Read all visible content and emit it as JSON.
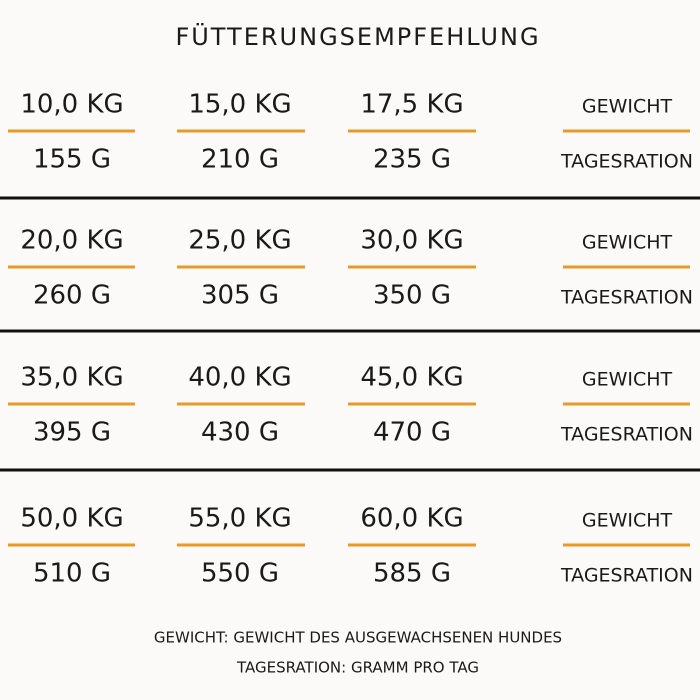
{
  "title": "FÜTTERUNGSEMPFEHLUNG",
  "groups": [
    {
      "items": [
        {
          "weight": "10,0 KG",
          "ration": "155 G"
        },
        {
          "weight": "15,0 KG",
          "ration": "210 G"
        },
        {
          "weight": "17,5 KG",
          "ration": "235 G"
        }
      ],
      "weight_label": "GEWICHT",
      "ration_label": "TAGESRATION"
    },
    {
      "items": [
        {
          "weight": "20,0 KG",
          "ration": "260 G"
        },
        {
          "weight": "25,0 KG",
          "ration": "305 G"
        },
        {
          "weight": "30,0 KG",
          "ration": "350 G"
        }
      ],
      "weight_label": "GEWICHT",
      "ration_label": "TAGESRATION"
    },
    {
      "items": [
        {
          "weight": "35,0 KG",
          "ration": "395 G"
        },
        {
          "weight": "40,0 KG",
          "ration": "430 G"
        },
        {
          "weight": "45,0 KG",
          "ration": "470 G"
        }
      ],
      "weight_label": "GEWICHT",
      "ration_label": "TAGESRATION"
    },
    {
      "items": [
        {
          "weight": "50,0 KG",
          "ration": "510 G"
        },
        {
          "weight": "55,0 KG",
          "ration": "550 G"
        },
        {
          "weight": "60,0 KG",
          "ration": "585 G"
        }
      ],
      "weight_label": "GEWICHT",
      "ration_label": "TAGESRATION"
    }
  ],
  "footnotes": [
    "GEWICHT: GEWICHT DES AUSGEWACHSENEN HUNDES",
    "TAGESRATION: GRAMM PRO TAG"
  ]
}
